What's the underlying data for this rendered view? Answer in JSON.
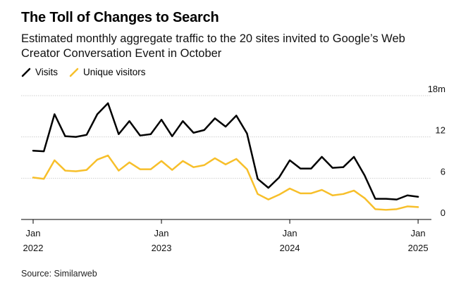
{
  "header": {
    "title": "The Toll of Changes to Search",
    "subtitle": "Estimated monthly aggregate traffic to the 20 sites invited to Google’s Web Creator Conversation Event in October"
  },
  "footer": {
    "source": "Source: Similarweb"
  },
  "chart_data": {
    "type": "line",
    "title": "The Toll of Changes to Search",
    "subtitle": "Estimated monthly aggregate traffic to the 20 sites invited to Google’s Web Creator Conversation Event in October",
    "xlabel": "",
    "ylabel": "",
    "ylim": [
      0,
      18
    ],
    "yticks": [
      {
        "value": 0,
        "label": "0"
      },
      {
        "value": 6,
        "label": "6"
      },
      {
        "value": 12,
        "label": "12"
      },
      {
        "value": 18,
        "label": "18m"
      }
    ],
    "xticks": [
      {
        "date": "2022-01",
        "line1": "Jan",
        "line2": "2022"
      },
      {
        "date": "2023-01",
        "line1": "Jan",
        "line2": "2023"
      },
      {
        "date": "2024-01",
        "line1": "Jan",
        "line2": "2024"
      },
      {
        "date": "2025-01",
        "line1": "Jan",
        "line2": "2025"
      }
    ],
    "grid": true,
    "legend_position": "top-left",
    "x": [
      "2022-01",
      "2022-02",
      "2022-03",
      "2022-04",
      "2022-05",
      "2022-06",
      "2022-07",
      "2022-08",
      "2022-09",
      "2022-10",
      "2022-11",
      "2022-12",
      "2023-01",
      "2023-02",
      "2023-03",
      "2023-04",
      "2023-05",
      "2023-06",
      "2023-07",
      "2023-08",
      "2023-09",
      "2023-10",
      "2023-11",
      "2023-12",
      "2024-01",
      "2024-02",
      "2024-03",
      "2024-04",
      "2024-05",
      "2024-06",
      "2024-07",
      "2024-08",
      "2024-09",
      "2024-10",
      "2024-11",
      "2024-12",
      "2025-01"
    ],
    "series": [
      {
        "name": "Visits",
        "color": "#000000",
        "values": [
          10.0,
          9.9,
          15.3,
          12.1,
          12.0,
          12.3,
          15.3,
          16.9,
          12.4,
          14.3,
          12.2,
          12.4,
          14.5,
          12.1,
          14.3,
          12.6,
          13.0,
          14.7,
          13.5,
          15.1,
          12.5,
          5.9,
          4.6,
          6.1,
          8.6,
          7.4,
          7.4,
          9.1,
          7.5,
          7.6,
          9.1,
          6.4,
          3.0,
          3.0,
          2.9,
          3.5,
          3.3
        ]
      },
      {
        "name": "Unique visitors",
        "color": "#f7bf2a",
        "values": [
          6.1,
          5.9,
          8.6,
          7.1,
          7.0,
          7.2,
          8.7,
          9.3,
          7.1,
          8.3,
          7.3,
          7.3,
          8.5,
          7.2,
          8.5,
          7.6,
          7.9,
          8.9,
          8.0,
          8.8,
          7.3,
          3.7,
          2.9,
          3.6,
          4.5,
          3.8,
          3.8,
          4.3,
          3.5,
          3.7,
          4.2,
          3.1,
          1.5,
          1.4,
          1.5,
          1.9,
          1.8
        ]
      }
    ]
  }
}
